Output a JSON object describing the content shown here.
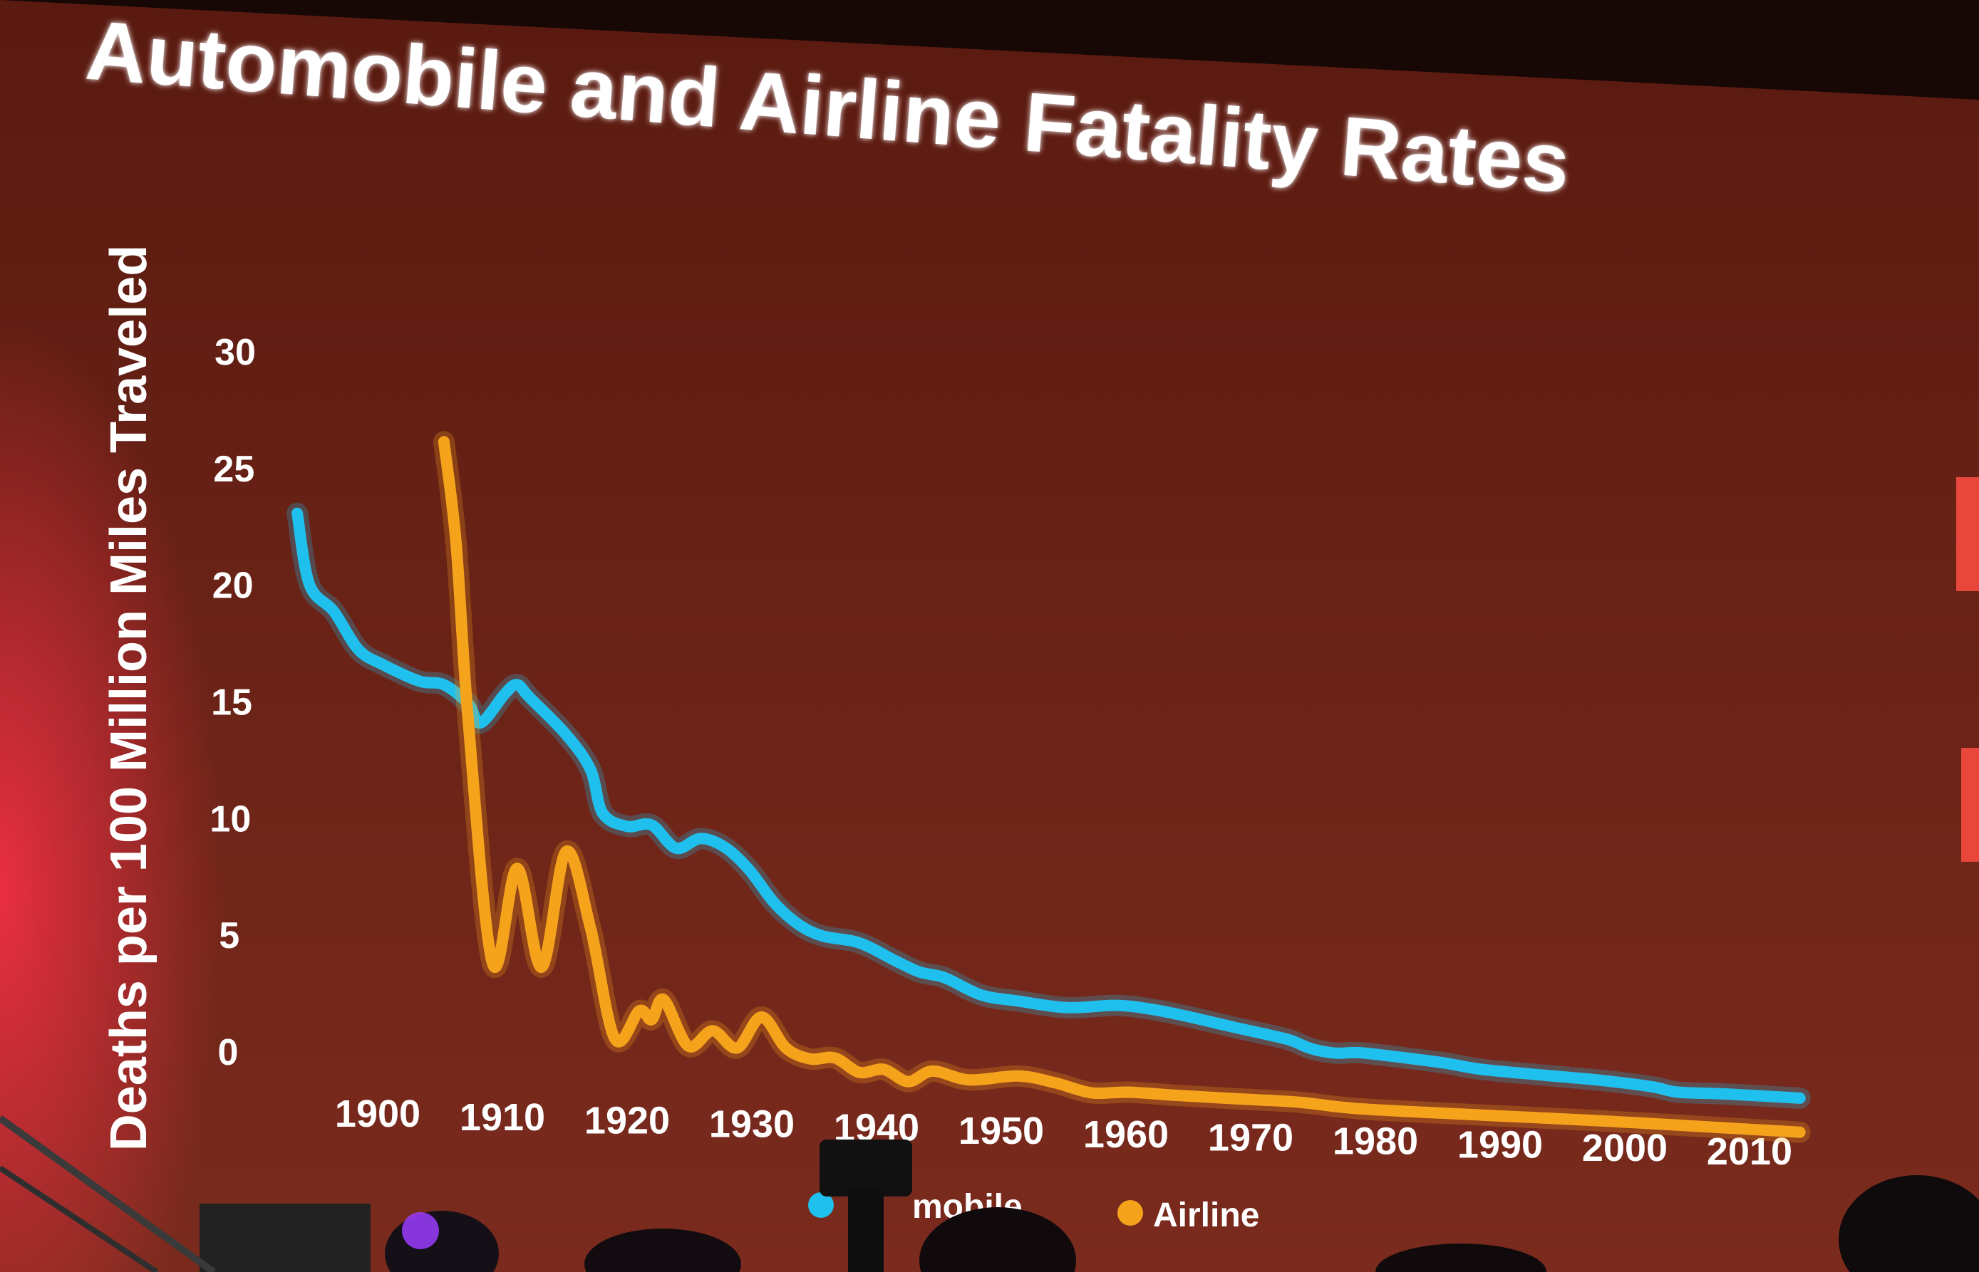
{
  "chart_data": {
    "type": "line",
    "title": "Automobile and Airline Fatality Rates",
    "ylabel": "Deaths per 100 Million Miles Traveled",
    "xlabel": "",
    "xlim": [
      1892,
      2018
    ],
    "ylim": [
      0,
      30
    ],
    "x_ticks": [
      "1900",
      "1910",
      "1920",
      "1930",
      "1940",
      "1950",
      "1960",
      "1970",
      "1980",
      "1990",
      "2000",
      "2010"
    ],
    "y_ticks": [
      "0",
      "5",
      "10",
      "15",
      "20",
      "25",
      "30"
    ],
    "grid": false,
    "legend": "bottom-center",
    "series": [
      {
        "name": "Automobile",
        "legend_label": "mobile",
        "color": "#1fc0ee",
        "points": [
          [
            1893,
            23
          ],
          [
            1894,
            20
          ],
          [
            1896,
            19
          ],
          [
            1898,
            17.5
          ],
          [
            1900,
            17
          ],
          [
            1903,
            16.5
          ],
          [
            1905,
            16.5
          ],
          [
            1907,
            15.8
          ],
          [
            1908,
            15
          ],
          [
            1910,
            16.5
          ],
          [
            1911,
            17
          ],
          [
            1912,
            16.5
          ],
          [
            1915,
            15
          ],
          [
            1917,
            13.5
          ],
          [
            1918,
            11.5
          ],
          [
            1920,
            11
          ],
          [
            1922,
            11.2
          ],
          [
            1924,
            10.2
          ],
          [
            1926,
            10.8
          ],
          [
            1928,
            10.5
          ],
          [
            1930,
            9.5
          ],
          [
            1932,
            8
          ],
          [
            1934,
            7
          ],
          [
            1936,
            6.5
          ],
          [
            1939,
            6.3
          ],
          [
            1942,
            5.5
          ],
          [
            1944,
            5
          ],
          [
            1946,
            4.8
          ],
          [
            1949,
            4
          ],
          [
            1952,
            3.8
          ],
          [
            1956,
            3.6
          ],
          [
            1960,
            3.9
          ],
          [
            1963,
            3.8
          ],
          [
            1966,
            3.5
          ],
          [
            1970,
            3.0
          ],
          [
            1974,
            2.5
          ],
          [
            1976,
            2.0
          ],
          [
            1978,
            1.8
          ],
          [
            1980,
            1.9
          ],
          [
            1984,
            1.7
          ],
          [
            1987,
            1.5
          ],
          [
            1990,
            1.2
          ],
          [
            1995,
            1.0
          ],
          [
            2000,
            0.8
          ],
          [
            2004,
            0.5
          ],
          [
            2006,
            0.2
          ],
          [
            2010,
            0.2
          ],
          [
            2016,
            0.1
          ]
        ]
      },
      {
        "name": "Airline",
        "legend_label": "Airline",
        "color": "#f6a31c",
        "points": [
          [
            1905,
            27.5
          ],
          [
            1906,
            23
          ],
          [
            1907,
            15
          ],
          [
            1909,
            4
          ],
          [
            1911,
            8.5
          ],
          [
            1913,
            4
          ],
          [
            1915,
            9.5
          ],
          [
            1917,
            6
          ],
          [
            1919,
            0.8
          ],
          [
            1921,
            2.2
          ],
          [
            1922,
            1.8
          ],
          [
            1923,
            2.8
          ],
          [
            1925,
            0.6
          ],
          [
            1927,
            1.4
          ],
          [
            1929,
            0.6
          ],
          [
            1931,
            2.2
          ],
          [
            1933,
            0.7
          ],
          [
            1935,
            0.2
          ],
          [
            1937,
            0.3
          ],
          [
            1939,
            -0.4
          ],
          [
            1941,
            -0.2
          ],
          [
            1943,
            -0.8
          ],
          [
            1945,
            -0.2
          ],
          [
            1948,
            -0.6
          ],
          [
            1952,
            -0.3
          ],
          [
            1955,
            -0.6
          ],
          [
            1958,
            -1.1
          ],
          [
            1961,
            -1.0
          ],
          [
            1965,
            -1.1
          ],
          [
            1970,
            -1.2
          ],
          [
            1975,
            -1.3
          ],
          [
            1980,
            -1.6
          ],
          [
            1990,
            -1.8
          ],
          [
            2000,
            -2.0
          ],
          [
            2010,
            -2.3
          ],
          [
            2016,
            -2.5
          ]
        ]
      }
    ]
  },
  "colors": {
    "screen_top": "#5e1b10",
    "screen_bottom": "#7a2a1c",
    "title_text": "#ffffff",
    "automobile_line": "#1fc0ee",
    "airline_line": "#f6a31c"
  }
}
